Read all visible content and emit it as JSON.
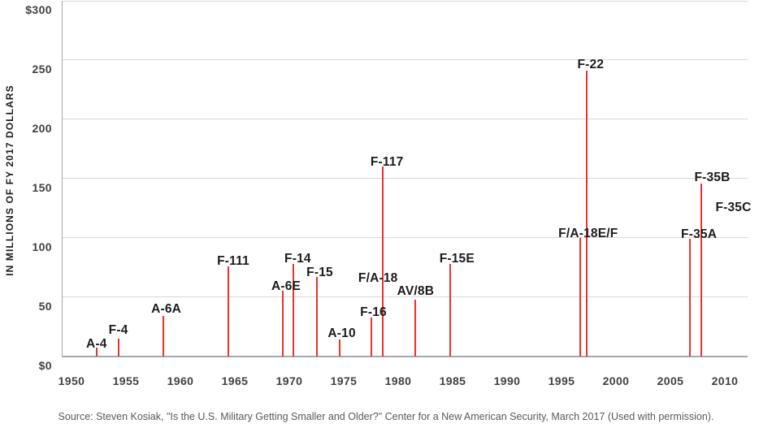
{
  "chart_data": {
    "type": "stem",
    "title": "",
    "ylabel": "IN MILLIONS OF FY 2017 DOLLARS",
    "xlabel": "",
    "ylim": [
      0,
      300
    ],
    "xlim": [
      1949,
      2012
    ],
    "grid": "horizontal",
    "legend": "none",
    "y_ticks": [
      {
        "value": 300,
        "label": "$300"
      },
      {
        "value": 250,
        "label": "250"
      },
      {
        "value": 200,
        "label": "200"
      },
      {
        "value": 150,
        "label": "150"
      },
      {
        "value": 100,
        "label": "100"
      },
      {
        "value": 50,
        "label": "50"
      },
      {
        "value": 0,
        "label": "$0"
      }
    ],
    "x_ticks": [
      {
        "value": 1950,
        "label": "1950"
      },
      {
        "value": 1955,
        "label": "1955"
      },
      {
        "value": 1960,
        "label": "1960"
      },
      {
        "value": 1965,
        "label": "1965"
      },
      {
        "value": 1970,
        "label": "1970"
      },
      {
        "value": 1975,
        "label": "1975"
      },
      {
        "value": 1980,
        "label": "1980"
      },
      {
        "value": 1985,
        "label": "1985"
      },
      {
        "value": 1990,
        "label": "1990"
      },
      {
        "value": 1995,
        "label": "1995"
      },
      {
        "value": 2000,
        "label": "2000"
      },
      {
        "value": 2005,
        "label": "2005"
      },
      {
        "value": 2010,
        "label": "2010"
      }
    ],
    "points": [
      {
        "label": "A-4",
        "year": 1952.3,
        "value": 7,
        "label_offset": [
          0,
          5
        ]
      },
      {
        "label": "F-4",
        "year": 1954.3,
        "value": 15,
        "label_offset": [
          0,
          0
        ]
      },
      {
        "label": "A-6A",
        "year": 1958.4,
        "value": 34,
        "label_offset": [
          4,
          1
        ]
      },
      {
        "label": "F-111",
        "year": 1964.4,
        "value": 76,
        "label_offset": [
          6,
          4
        ]
      },
      {
        "label": "A-6E",
        "year": 1969.4,
        "value": 55,
        "label_offset": [
          4,
          4
        ]
      },
      {
        "label": "F-14",
        "year": 1970.4,
        "value": 78,
        "label_offset": [
          5,
          4
        ]
      },
      {
        "label": "F-15",
        "year": 1972.5,
        "value": 67,
        "label_offset": [
          4,
          5
        ]
      },
      {
        "label": "A-10",
        "year": 1974.6,
        "value": 14,
        "label_offset": [
          3,
          2
        ]
      },
      {
        "label": "F-16",
        "year": 1977.5,
        "value": 33,
        "label_offset": [
          3,
          4
        ]
      },
      {
        "label": "F/A-18",
        "year": 1978.6,
        "value": 59,
        "label_offset": [
          -6,
          0
        ]
      },
      {
        "label": "F-117",
        "year": 1978.6,
        "value": 160,
        "label_offset": [
          5,
          4
        ]
      },
      {
        "label": "AV/8B",
        "year": 1981.6,
        "value": 48,
        "label_offset": [
          0,
          0
        ]
      },
      {
        "label": "F-15E",
        "year": 1984.8,
        "value": 78,
        "label_offset": [
          8,
          4
        ]
      },
      {
        "label": "F/A-18E/F",
        "year": 1996.7,
        "value": 100,
        "label_offset": [
          10,
          5
        ]
      },
      {
        "label": "F-22",
        "year": 1997.3,
        "value": 241,
        "label_offset": [
          5,
          2
        ]
      },
      {
        "label": "F-35A",
        "year": 2006.8,
        "value": 99,
        "label_offset": [
          11,
          4
        ]
      },
      {
        "label": "F-35B",
        "year": 2007.8,
        "value": 146,
        "label_offset": [
          14,
          3
        ]
      },
      {
        "label": "F-35C",
        "year": 2007.8,
        "value": 130,
        "label_offset": [
          40,
          16
        ]
      }
    ],
    "source": "Source: Steven Kosiak, \"Is the U.S. Military Getting Smaller and Older?\" Center for a New American Security, March 2017 (Used with permission)."
  },
  "colors": {
    "stem": "#ed322c",
    "point_label": "#1c1c1e",
    "tick_label": "#414144",
    "grid": "#d8d8d8",
    "axis": "#a8a8a8",
    "source": "#58595b",
    "background": "#ffffff"
  }
}
